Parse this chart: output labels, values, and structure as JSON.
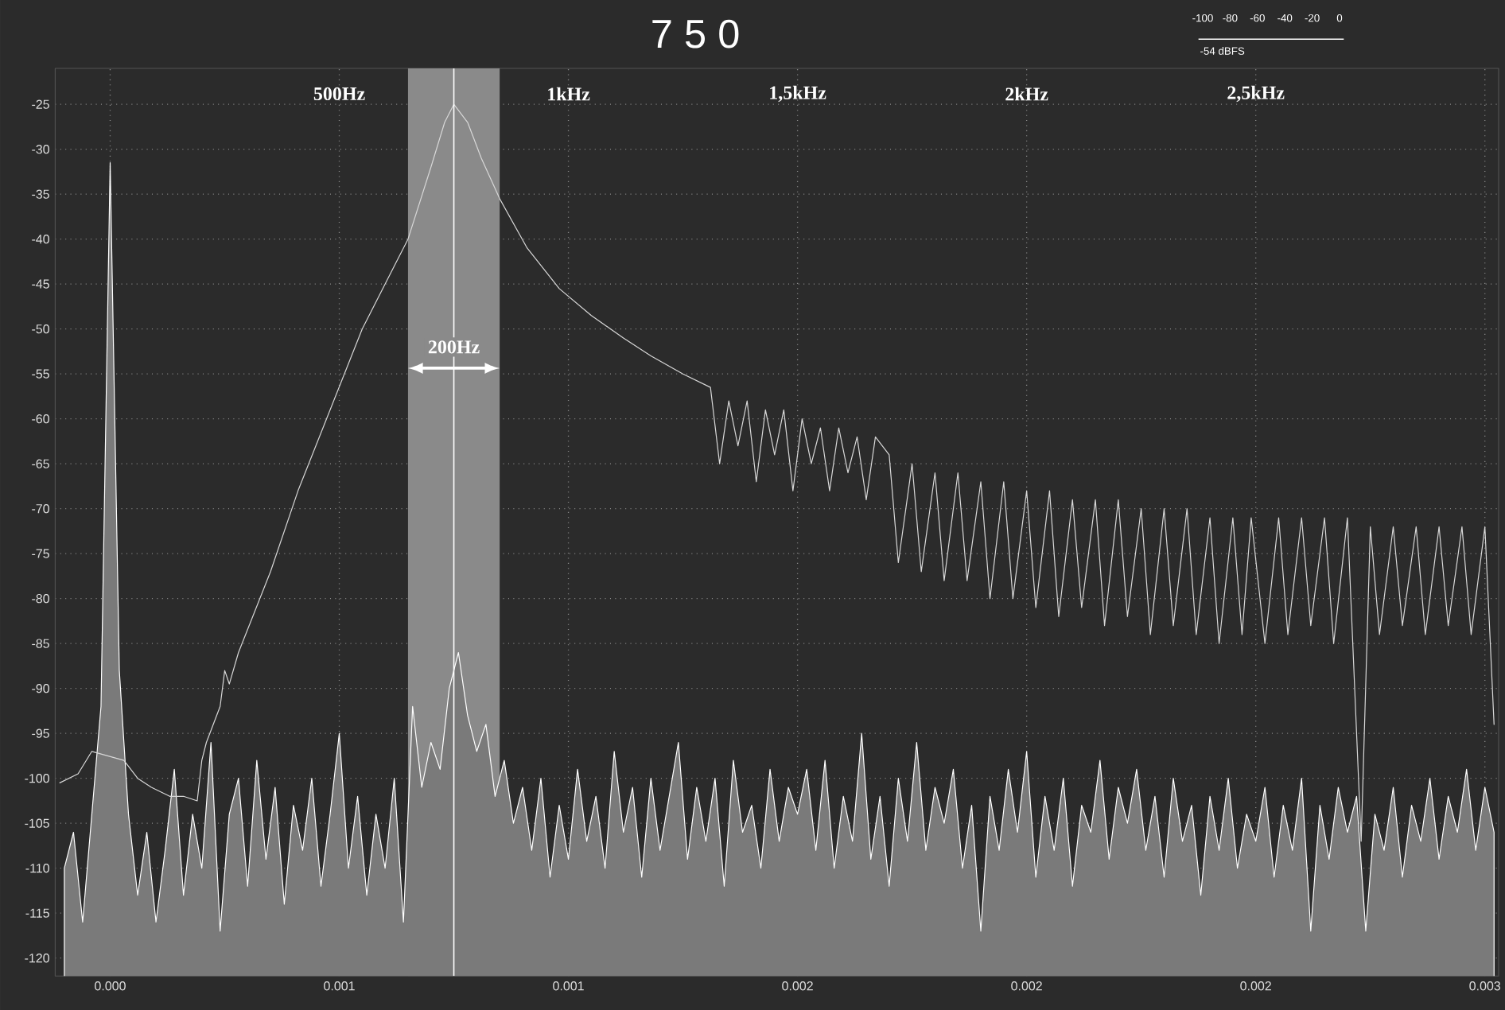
{
  "chart_data": {
    "type": "line",
    "title": "7 5 0",
    "xlim": [
      -0.00012,
      0.00303
    ],
    "ylim": [
      -122,
      -21
    ],
    "xticks": [
      {
        "value": 0,
        "label": "0.000"
      },
      {
        "value": 0.0005,
        "label": "0.001"
      },
      {
        "value": 0.001,
        "label": "0.001"
      },
      {
        "value": 0.0015,
        "label": "0.002"
      },
      {
        "value": 0.002,
        "label": "0.002"
      },
      {
        "value": 0.0025,
        "label": "0.002"
      },
      {
        "value": 0.003,
        "label": "0.003"
      }
    ],
    "yticks": [
      -25,
      -30,
      -35,
      -40,
      -45,
      -50,
      -55,
      -60,
      -65,
      -70,
      -75,
      -80,
      -85,
      -90,
      -95,
      -100,
      -105,
      -110,
      -115,
      -120
    ],
    "grid": true,
    "series": [
      {
        "type": "area",
        "color": "#7a7a7a",
        "x": [
          -0.0001,
          -8e-05,
          -6e-05,
          -4e-05,
          -2e-05,
          0,
          2e-05,
          4e-05,
          6e-05,
          8e-05,
          0.0001,
          0.00012,
          0.00014,
          0.00016,
          0.00018,
          0.0002,
          0.00022,
          0.00024,
          0.00026,
          0.00028,
          0.0003,
          0.00032,
          0.00034,
          0.00036,
          0.00038,
          0.0004,
          0.00042,
          0.00044,
          0.00046,
          0.00048,
          0.0005,
          0.00052,
          0.00054,
          0.00056,
          0.00058,
          0.0006,
          0.00062,
          0.00064,
          0.00066,
          0.00068,
          0.0007,
          0.00072,
          0.00074,
          0.00076,
          0.00078,
          0.0008,
          0.00082,
          0.00084,
          0.00086,
          0.00088,
          0.0009,
          0.00092,
          0.00094,
          0.00096,
          0.00098,
          0.001,
          0.00102,
          0.00104,
          0.00106,
          0.00108,
          0.0011,
          0.00112,
          0.00114,
          0.00116,
          0.00118,
          0.0012,
          0.00122,
          0.00124,
          0.00126,
          0.00128,
          0.0013,
          0.00132,
          0.00134,
          0.00136,
          0.00138,
          0.0014,
          0.00142,
          0.00144,
          0.00146,
          0.00148,
          0.0015,
          0.00152,
          0.00154,
          0.00156,
          0.00158,
          0.0016,
          0.00162,
          0.00164,
          0.00166,
          0.00168,
          0.0017,
          0.00172,
          0.00174,
          0.00176,
          0.00178,
          0.0018,
          0.00182,
          0.00184,
          0.00186,
          0.00188,
          0.0019,
          0.00192,
          0.00194,
          0.00196,
          0.00198,
          0.002,
          0.00202,
          0.00204,
          0.00206,
          0.00208,
          0.0021,
          0.00212,
          0.00214,
          0.00216,
          0.00218,
          0.0022,
          0.00222,
          0.00224,
          0.00226,
          0.00228,
          0.0023,
          0.00232,
          0.00234,
          0.00236,
          0.00238,
          0.0024,
          0.00242,
          0.00244,
          0.00246,
          0.00248,
          0.0025,
          0.00252,
          0.00254,
          0.00256,
          0.00258,
          0.0026,
          0.00262,
          0.00264,
          0.00266,
          0.00268,
          0.0027,
          0.00272,
          0.00274,
          0.00276,
          0.00278,
          0.0028,
          0.00282,
          0.00284,
          0.00286,
          0.00288,
          0.0029,
          0.00292,
          0.00294,
          0.00296,
          0.00298,
          0.003,
          0.00302
        ],
        "values": [
          -110,
          -106,
          -116,
          -104,
          -92,
          -31.5,
          -88,
          -104,
          -113,
          -106,
          -116,
          -108,
          -99,
          -113,
          -104,
          -110,
          -96,
          -117,
          -104,
          -100,
          -112,
          -98,
          -109,
          -101,
          -114,
          -103,
          -108,
          -100,
          -112,
          -104,
          -95,
          -110,
          -102,
          -113,
          -104,
          -110,
          -100,
          -116,
          -92,
          -101,
          -96,
          -99,
          -90,
          -86,
          -93,
          -97,
          -94,
          -102,
          -98,
          -105,
          -101,
          -108,
          -100,
          -111,
          -103,
          -109,
          -99,
          -107,
          -102,
          -110,
          -97,
          -106,
          -101,
          -111,
          -100,
          -108,
          -102,
          -96,
          -109,
          -101,
          -107,
          -100,
          -112,
          -98,
          -106,
          -103,
          -110,
          -99,
          -107,
          -101,
          -104,
          -99,
          -108,
          -98,
          -110,
          -102,
          -107,
          -95,
          -109,
          -102,
          -112,
          -100,
          -107,
          -96,
          -108,
          -101,
          -105,
          -99,
          -110,
          -103,
          -117,
          -102,
          -108,
          -99,
          -106,
          -97,
          -111,
          -102,
          -108,
          -100,
          -112,
          -103,
          -106,
          -98,
          -109,
          -101,
          -105,
          -99,
          -108,
          -102,
          -111,
          -100,
          -107,
          -103,
          -113,
          -102,
          -108,
          -100,
          -110,
          -104,
          -107,
          -101,
          -111,
          -103,
          -108,
          -100,
          -117,
          -103,
          -109,
          -101,
          -106,
          -102,
          -117,
          -104,
          -108,
          -101,
          -111,
          -103,
          -107,
          -100,
          -109,
          -102,
          -106,
          -99,
          -108,
          -101,
          -106
        ]
      },
      {
        "color": "#d8d8d8",
        "x": [
          -0.00011,
          -7e-05,
          -4e-05,
          3e-05,
          6e-05,
          9e-05,
          0.00013,
          0.00016,
          0.00019,
          0.0002,
          0.00021,
          0.00024,
          0.00025,
          0.00026,
          0.00028,
          0.00035,
          0.00041,
          0.00048,
          0.00055,
          0.00062,
          0.00065,
          0.0007,
          0.00073,
          0.00075,
          0.00078,
          0.00081,
          0.00085,
          0.00091,
          0.00098,
          0.00105,
          0.00112,
          0.00118,
          0.00125,
          0.00131,
          0.00133,
          0.00135,
          0.00137,
          0.00139,
          0.00141,
          0.00143,
          0.00145,
          0.00147,
          0.00149,
          0.00151,
          0.00153,
          0.00155,
          0.00157,
          0.00159,
          0.00161,
          0.00163,
          0.00165,
          0.00167,
          0.0017,
          0.00172,
          0.00175,
          0.00177,
          0.0018,
          0.00182,
          0.00185,
          0.00187,
          0.0019,
          0.00192,
          0.00195,
          0.00197,
          0.002,
          0.00202,
          0.00205,
          0.00207,
          0.0021,
          0.00212,
          0.00215,
          0.00217,
          0.0022,
          0.00222,
          0.00225,
          0.00227,
          0.0023,
          0.00232,
          0.00235,
          0.00237,
          0.0024,
          0.00242,
          0.00245,
          0.00247,
          0.00249,
          0.00252,
          0.00255,
          0.00257,
          0.0026,
          0.00262,
          0.00265,
          0.00267,
          0.0027,
          0.00273,
          0.00275,
          0.00277,
          0.0028,
          0.00282,
          0.00285,
          0.00287,
          0.0029,
          0.00292,
          0.00295,
          0.00297,
          0.003,
          0.00302
        ],
        "values": [
          -100.5,
          -99.5,
          -97,
          -98,
          -100,
          -101,
          -102,
          -102,
          -102.5,
          -98,
          -96,
          -92,
          -88,
          -89.5,
          -86,
          -77,
          -68,
          -59,
          -50,
          -43,
          -40,
          -32,
          -27,
          -25,
          -27,
          -31,
          -35.5,
          -41,
          -45.5,
          -48.5,
          -51,
          -53,
          -55,
          -56.5,
          -65,
          -58,
          -63,
          -58,
          -67,
          -59,
          -64,
          -59,
          -68,
          -60,
          -65,
          -61,
          -68,
          -61,
          -66,
          -62,
          -69,
          -62,
          -64,
          -76,
          -65,
          -77,
          -66,
          -78,
          -66,
          -78,
          -67,
          -80,
          -67,
          -80,
          -68,
          -81,
          -68,
          -82,
          -69,
          -81,
          -69,
          -83,
          -69,
          -82,
          -70,
          -84,
          -70,
          -83,
          -70,
          -84,
          -71,
          -85,
          -71,
          -84,
          -71,
          -85,
          -71,
          -84,
          -71,
          -83,
          -71,
          -85,
          -71,
          -107,
          -72,
          -84,
          -72,
          -83,
          -72,
          -84,
          -72,
          -83,
          -72,
          -84,
          -72,
          -94
        ]
      }
    ],
    "bands": [
      {
        "axis": "x",
        "from": 0.00065,
        "to": 0.00085,
        "color": "#8a8a8a"
      }
    ],
    "ref_lines": [
      {
        "axis": "x",
        "value": 0.00075,
        "color": "#ffffff"
      }
    ],
    "annotations": [
      "500Hz",
      "1kHz",
      "1,5kHz",
      "2kHz",
      "2,5kHz",
      {
        "text": "200Hz",
        "x": 0.00075,
        "y": -52
      },
      "-100",
      "-80",
      "-60",
      "-40",
      "-20",
      "0",
      "-54 dBFS"
    ]
  }
}
